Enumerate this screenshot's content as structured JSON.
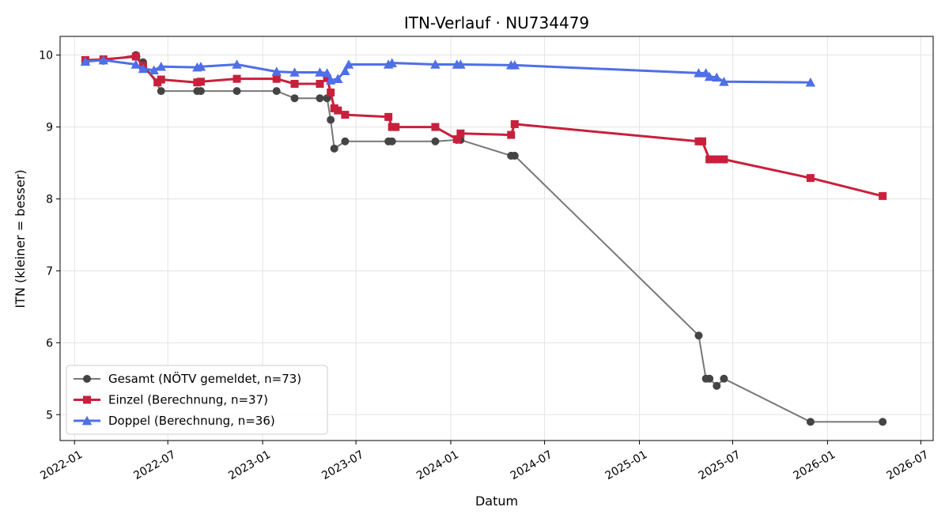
{
  "chart_data": {
    "type": "line",
    "title": "ITN-Verlauf · NU734479",
    "xlabel": "Datum",
    "ylabel": "ITN  (kleiner = besser)",
    "x_axis_type": "date",
    "xlim": [
      "2021-12-04",
      "2026-07-25"
    ],
    "ylim": [
      4.64,
      10.26
    ],
    "x_ticks": [
      "2022-01",
      "2022-07",
      "2023-01",
      "2023-07",
      "2024-01",
      "2024-07",
      "2025-01",
      "2025-07",
      "2026-01",
      "2026-07"
    ],
    "y_ticks": [
      5,
      6,
      7,
      8,
      9,
      10
    ],
    "grid": true,
    "legend_position": "lower-left",
    "series": [
      {
        "name": "Gesamt (NÖTV gemeldet, n=73)",
        "color": "#444444",
        "marker": "circle",
        "points": [
          [
            "2022-01-22",
            9.92
          ],
          [
            "2022-02-26",
            9.92
          ],
          [
            "2022-04-30",
            10.0
          ],
          [
            "2022-05-01",
            9.98
          ],
          [
            "2022-05-14",
            9.9
          ],
          [
            "2022-06-18",
            9.5
          ],
          [
            "2022-08-27",
            9.5
          ],
          [
            "2022-09-03",
            9.5
          ],
          [
            "2022-11-12",
            9.5
          ],
          [
            "2023-01-28",
            9.5
          ],
          [
            "2023-03-04",
            9.4
          ],
          [
            "2023-04-22",
            9.4
          ],
          [
            "2023-05-06",
            9.4
          ],
          [
            "2023-05-13",
            9.1
          ],
          [
            "2023-05-20",
            8.7
          ],
          [
            "2023-06-10",
            8.8
          ],
          [
            "2023-09-02",
            8.8
          ],
          [
            "2023-09-09",
            8.8
          ],
          [
            "2023-12-02",
            8.8
          ],
          [
            "2024-01-13",
            8.82
          ],
          [
            "2024-01-20",
            8.82
          ],
          [
            "2024-04-27",
            8.6
          ],
          [
            "2024-05-04",
            8.6
          ],
          [
            "2025-04-26",
            6.1
          ],
          [
            "2025-05-10",
            5.5
          ],
          [
            "2025-05-17",
            5.5
          ],
          [
            "2025-05-31",
            5.4
          ],
          [
            "2025-06-14",
            5.5
          ],
          [
            "2025-11-29",
            4.9
          ],
          [
            "2026-04-18",
            4.9
          ]
        ]
      },
      {
        "name": "Einzel (Berechnung, n=37)",
        "color": "#c8203c",
        "marker": "square",
        "points": [
          [
            "2022-01-22",
            9.93
          ],
          [
            "2022-02-26",
            9.94
          ],
          [
            "2022-04-30",
            9.98
          ],
          [
            "2022-05-14",
            9.85
          ],
          [
            "2022-06-11",
            9.62
          ],
          [
            "2022-06-18",
            9.66
          ],
          [
            "2022-08-27",
            9.62
          ],
          [
            "2022-09-03",
            9.63
          ],
          [
            "2022-11-12",
            9.67
          ],
          [
            "2023-01-28",
            9.67
          ],
          [
            "2023-03-04",
            9.6
          ],
          [
            "2023-04-22",
            9.6
          ],
          [
            "2023-05-06",
            9.68
          ],
          [
            "2023-05-13",
            9.48
          ],
          [
            "2023-05-20",
            9.26
          ],
          [
            "2023-05-27",
            9.23
          ],
          [
            "2023-06-10",
            9.17
          ],
          [
            "2023-09-02",
            9.14
          ],
          [
            "2023-09-09",
            9.0
          ],
          [
            "2023-09-16",
            9.0
          ],
          [
            "2023-12-02",
            9.0
          ],
          [
            "2024-01-13",
            8.83
          ],
          [
            "2024-01-20",
            8.91
          ],
          [
            "2024-04-27",
            8.89
          ],
          [
            "2024-05-04",
            9.04
          ],
          [
            "2025-04-26",
            8.8
          ],
          [
            "2025-05-03",
            8.8
          ],
          [
            "2025-05-17",
            8.55
          ],
          [
            "2025-05-31",
            8.55
          ],
          [
            "2025-06-14",
            8.55
          ],
          [
            "2025-11-29",
            8.29
          ],
          [
            "2026-04-18",
            8.04
          ]
        ]
      },
      {
        "name": "Doppel (Berechnung, n=36)",
        "color": "#4f6fe8",
        "marker": "triangle",
        "points": [
          [
            "2022-01-22",
            9.91
          ],
          [
            "2022-02-26",
            9.93
          ],
          [
            "2022-04-30",
            9.87
          ],
          [
            "2022-05-14",
            9.81
          ],
          [
            "2022-06-04",
            9.79
          ],
          [
            "2022-06-18",
            9.84
          ],
          [
            "2022-08-27",
            9.83
          ],
          [
            "2022-09-03",
            9.84
          ],
          [
            "2022-11-12",
            9.87
          ],
          [
            "2023-01-28",
            9.77
          ],
          [
            "2023-03-04",
            9.76
          ],
          [
            "2023-04-22",
            9.76
          ],
          [
            "2023-05-06",
            9.75
          ],
          [
            "2023-05-13",
            9.65
          ],
          [
            "2023-05-27",
            9.67
          ],
          [
            "2023-06-10",
            9.78
          ],
          [
            "2023-06-17",
            9.87
          ],
          [
            "2023-09-02",
            9.87
          ],
          [
            "2023-09-09",
            9.89
          ],
          [
            "2023-12-02",
            9.87
          ],
          [
            "2024-01-13",
            9.87
          ],
          [
            "2024-01-20",
            9.87
          ],
          [
            "2024-04-27",
            9.86
          ],
          [
            "2024-05-04",
            9.86
          ],
          [
            "2025-04-26",
            9.75
          ],
          [
            "2025-05-10",
            9.75
          ],
          [
            "2025-05-17",
            9.7
          ],
          [
            "2025-05-31",
            9.69
          ],
          [
            "2025-06-14",
            9.63
          ],
          [
            "2025-11-29",
            9.62
          ]
        ]
      }
    ]
  }
}
